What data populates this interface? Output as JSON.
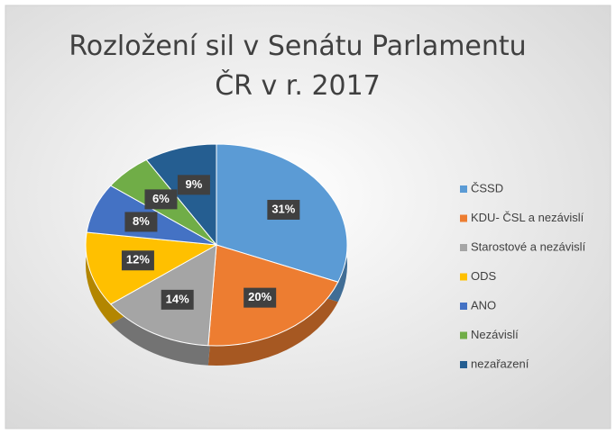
{
  "chart_data": {
    "type": "pie",
    "title": "Rozložení sil v Senátu Parlamentu ČR v r. 2017",
    "categories": [
      "ČSSD",
      "KDU- ČSL a nezávislí",
      "Starostové a nezávislí",
      "ODS",
      "ANO",
      "Nezávislí",
      "nezařazení"
    ],
    "values": [
      31,
      20,
      14,
      12,
      8,
      6,
      9
    ],
    "value_labels": [
      "31%",
      "20%",
      "14%",
      "12%",
      "8%",
      "6%",
      "9%"
    ],
    "colors": [
      "#5b9bd5",
      "#ed7d31",
      "#a5a5a5",
      "#ffc000",
      "#4472c4",
      "#70ad47",
      "#255e91"
    ],
    "legend": "right"
  }
}
